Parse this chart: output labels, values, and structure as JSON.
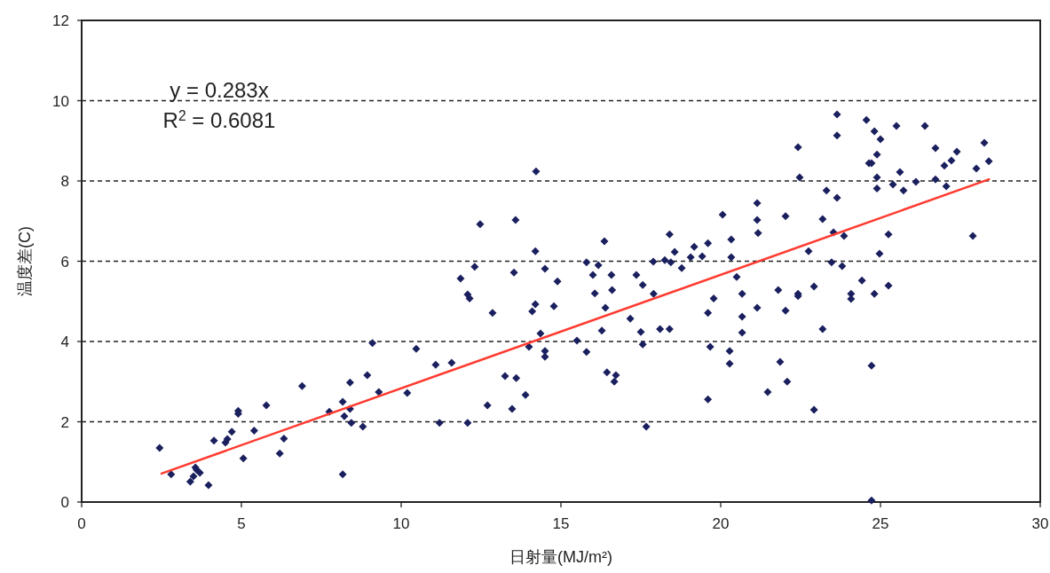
{
  "chart_data": {
    "type": "scatter",
    "xlabel": "日射量(MJ/m²)",
    "ylabel": "温度差(C)",
    "annotations": [
      "y = 0.283x",
      "R$^{2}$ = 0.6081"
    ],
    "xlim": [
      0,
      30
    ],
    "xticks": [
      0,
      5,
      10,
      15,
      20,
      25,
      30
    ],
    "ylim": [
      0,
      12
    ],
    "yticks": [
      0,
      2,
      4,
      6,
      8,
      10,
      12
    ],
    "grid": "y",
    "series": [
      {
        "marker": "diamond",
        "color": "#1a1f5e",
        "x": [
          2.44,
          2.8,
          3.4,
          3.5,
          3.6,
          3.56,
          3.7,
          3.97,
          4.14,
          4.5,
          4.56,
          4.7,
          4.9,
          4.9,
          5.06,
          5.4,
          5.78,
          6.2,
          6.33,
          6.9,
          7.75,
          8.17,
          8.22,
          8.17,
          8.4,
          8.4,
          8.44,
          8.8,
          8.94,
          9.1,
          9.3,
          10.19,
          10.47,
          11.2,
          11.08,
          11.58,
          11.86,
          12.08,
          12.14,
          12.3,
          12.47,
          12.08,
          12.7,
          12.86,
          13.25,
          13.47,
          13.6,
          13.53,
          13.58,
          13.89,
          14.0,
          14.1,
          14.22,
          14.2,
          14.2,
          14.36,
          14.5,
          14.5,
          14.5,
          14.78,
          14.89,
          15.5,
          15.8,
          15.8,
          16.0,
          16.06,
          16.17,
          16.28,
          16.36,
          16.39,
          16.44,
          16.58,
          16.6,
          16.67,
          16.72,
          17.17,
          17.36,
          17.5,
          17.56,
          17.56,
          17.67,
          17.89,
          17.9,
          18.1,
          18.25,
          18.4,
          18.4,
          18.44,
          18.56,
          18.78,
          19.06,
          19.17,
          19.42,
          19.6,
          19.6,
          19.67,
          19.6,
          19.78,
          20.06,
          20.33,
          20.33,
          20.5,
          20.67,
          20.67,
          20.67,
          20.28,
          20.28,
          21.14,
          21.14,
          21.17,
          21.14,
          21.47,
          21.8,
          21.86,
          22.03,
          22.03,
          22.08,
          22.42,
          22.47,
          22.42,
          22.42,
          22.75,
          22.92,
          22.92,
          23.19,
          23.19,
          23.31,
          23.47,
          23.53,
          23.64,
          23.64,
          23.64,
          23.8,
          23.86,
          24.08,
          24.08,
          24.42,
          24.56,
          24.72,
          24.72,
          24.64,
          24.72,
          24.81,
          24.89,
          24.89,
          24.89,
          24.81,
          25.0,
          24.97,
          25.25,
          25.25,
          25.39,
          25.5,
          25.61,
          25.72,
          26.11,
          26.39,
          26.72,
          26.72,
          27.0,
          27.06,
          27.22,
          27.39,
          27.89,
          28.0,
          28.25,
          28.39
        ],
        "values": [
          1.35,
          0.69,
          0.51,
          0.64,
          0.8,
          0.86,
          0.73,
          0.42,
          1.53,
          1.48,
          1.57,
          1.75,
          2.27,
          2.2,
          1.09,
          1.78,
          2.41,
          1.21,
          1.58,
          2.89,
          2.25,
          2.5,
          2.14,
          0.69,
          2.98,
          2.32,
          1.97,
          1.88,
          3.16,
          3.96,
          2.74,
          2.72,
          3.82,
          1.97,
          3.42,
          3.47,
          5.57,
          5.17,
          5.07,
          5.86,
          6.92,
          1.97,
          2.41,
          4.71,
          3.14,
          2.32,
          3.09,
          5.72,
          7.03,
          2.67,
          3.87,
          4.75,
          8.24,
          6.25,
          4.93,
          4.2,
          3.76,
          3.62,
          5.81,
          4.88,
          5.5,
          4.02,
          3.74,
          5.97,
          5.66,
          5.2,
          5.9,
          4.27,
          6.5,
          4.84,
          3.23,
          5.66,
          5.28,
          3.0,
          3.16,
          4.57,
          5.66,
          4.24,
          3.93,
          5.41,
          1.88,
          5.99,
          5.19,
          4.31,
          6.03,
          6.67,
          4.31,
          5.97,
          6.23,
          5.83,
          6.1,
          6.36,
          6.12,
          6.45,
          4.71,
          3.87,
          2.56,
          5.07,
          7.16,
          6.54,
          6.1,
          5.61,
          5.19,
          4.62,
          4.22,
          3.76,
          3.45,
          7.45,
          7.03,
          6.7,
          4.84,
          2.74,
          5.28,
          3.49,
          7.12,
          4.77,
          3.0,
          8.84,
          8.09,
          5.19,
          5.13,
          6.25,
          5.37,
          2.3,
          7.05,
          4.31,
          7.76,
          5.97,
          6.72,
          9.66,
          9.13,
          7.58,
          5.88,
          6.63,
          5.19,
          5.06,
          5.52,
          9.52,
          3.4,
          0.04,
          8.44,
          8.44,
          9.24,
          8.66,
          8.09,
          7.81,
          5.19,
          9.04,
          6.19,
          6.67,
          5.39,
          7.91,
          9.37,
          8.22,
          7.76,
          7.98,
          9.37,
          8.82,
          8.04,
          8.38,
          7.87,
          8.51,
          8.73,
          6.63,
          8.31,
          8.95,
          8.49
        ]
      },
      {
        "type": "line",
        "marker": "none",
        "color": "#ff3b30",
        "x": [
          2.5,
          28.4
        ],
        "values": [
          0.71,
          8.04
        ]
      }
    ]
  }
}
